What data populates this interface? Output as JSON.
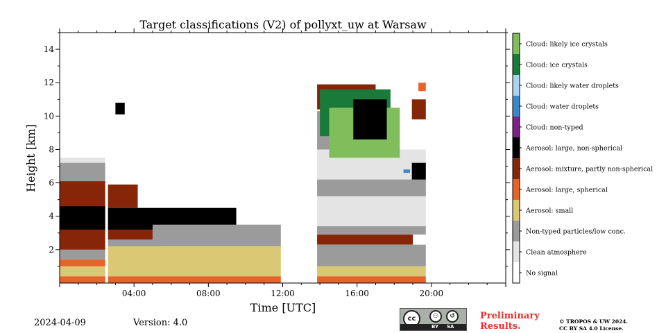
{
  "chart_data": {
    "type": "heatmap",
    "title": "Target classifications (V2) of pollyxt_uw at Warsaw",
    "xlabel": "Time [UTC]",
    "ylabel": "Height [km]",
    "xlim_hours": [
      0,
      24
    ],
    "ylim_km": [
      0,
      15
    ],
    "x_ticks": [
      {
        "hour": 4,
        "label": "04:00"
      },
      {
        "hour": 8,
        "label": "08:00"
      },
      {
        "hour": 12,
        "label": "12:00"
      },
      {
        "hour": 16,
        "label": "16:00"
      },
      {
        "hour": 20,
        "label": "20:00"
      }
    ],
    "y_ticks": [
      {
        "km": 2,
        "label": "2"
      },
      {
        "km": 4,
        "label": "4"
      },
      {
        "km": 6,
        "label": "6"
      },
      {
        "km": 8,
        "label": "8"
      },
      {
        "km": 10,
        "label": "10"
      },
      {
        "km": 12,
        "label": "12"
      },
      {
        "km": 14,
        "label": "14"
      }
    ],
    "classes": [
      {
        "id": 11,
        "label": "Cloud: likely ice crystals",
        "color": "#7fbe5a"
      },
      {
        "id": 10,
        "label": "Cloud: ice crystals",
        "color": "#1a7a3a"
      },
      {
        "id": 9,
        "label": "Cloud: likely water droplets",
        "color": "#a8d4f2"
      },
      {
        "id": 8,
        "label": "Cloud: water droplets",
        "color": "#3a88c8"
      },
      {
        "id": 7,
        "label": "Cloud: non-typed",
        "color": "#7d2185"
      },
      {
        "id": 6,
        "label": "Aerosol: large, non-spherical",
        "color": "#000000"
      },
      {
        "id": 5,
        "label": "Aerosol: mixture, partly non-spherical",
        "color": "#862508"
      },
      {
        "id": 4,
        "label": "Aerosol: large, spherical",
        "color": "#e8632a"
      },
      {
        "id": 3,
        "label": "Aerosol: small",
        "color": "#dbc874"
      },
      {
        "id": 2,
        "label": "Non-typed particles/low conc.",
        "color": "#9b9b9b"
      },
      {
        "id": 1,
        "label": "Clean atmosphere",
        "color": "#e4e4e4"
      },
      {
        "id": 0,
        "label": "No signal",
        "color": "#ffffff"
      }
    ],
    "regions": [
      {
        "class": 1,
        "t0": 0,
        "t1": 2.45,
        "h0": 0,
        "h1": 7.5
      },
      {
        "class": 2,
        "t0": 0,
        "t1": 2.45,
        "h0": 6.0,
        "h1": 7.2
      },
      {
        "class": 5,
        "t0": 0,
        "t1": 2.45,
        "h0": 4.5,
        "h1": 6.1
      },
      {
        "class": 6,
        "t0": 0,
        "t1": 2.45,
        "h0": 3.2,
        "h1": 4.6
      },
      {
        "class": 5,
        "t0": 0,
        "t1": 2.45,
        "h0": 2.0,
        "h1": 3.2
      },
      {
        "class": 2,
        "t0": 0,
        "t1": 2.45,
        "h0": 1.4,
        "h1": 2.0
      },
      {
        "class": 4,
        "t0": 0,
        "t1": 2.45,
        "h0": 1.0,
        "h1": 1.4
      },
      {
        "class": 3,
        "t0": 0,
        "t1": 2.45,
        "h0": 0.4,
        "h1": 1.0
      },
      {
        "class": 4,
        "t0": 0,
        "t1": 2.45,
        "h0": 0.0,
        "h1": 0.4
      },
      {
        "class": 5,
        "t0": 2.6,
        "t1": 4.2,
        "h0": 4.5,
        "h1": 5.9
      },
      {
        "class": 6,
        "t0": 2.6,
        "t1": 9.5,
        "h0": 3.2,
        "h1": 4.5
      },
      {
        "class": 5,
        "t0": 2.6,
        "t1": 5.0,
        "h0": 2.6,
        "h1": 3.2
      },
      {
        "class": 2,
        "t0": 2.6,
        "t1": 5.5,
        "h0": 1.4,
        "h1": 2.6
      },
      {
        "class": 2,
        "t0": 5.0,
        "t1": 11.9,
        "h0": 2.2,
        "h1": 3.5
      },
      {
        "class": 3,
        "t0": 2.6,
        "t1": 11.9,
        "h0": 0.4,
        "h1": 2.2
      },
      {
        "class": 4,
        "t0": 2.6,
        "t1": 11.9,
        "h0": 0.0,
        "h1": 0.4
      },
      {
        "class": 6,
        "t0": 3.0,
        "t1": 3.5,
        "h0": 10.1,
        "h1": 10.8
      },
      {
        "class": 1,
        "t0": 13.85,
        "t1": 19.7,
        "h0": 3.0,
        "h1": 8.0
      },
      {
        "class": 2,
        "t0": 13.85,
        "t1": 19.7,
        "h0": 5.2,
        "h1": 6.2
      },
      {
        "class": 2,
        "t0": 13.85,
        "t1": 19.7,
        "h0": 2.9,
        "h1": 3.4
      },
      {
        "class": 5,
        "t0": 13.85,
        "t1": 19.0,
        "h0": 2.3,
        "h1": 2.9
      },
      {
        "class": 2,
        "t0": 13.85,
        "t1": 19.7,
        "h0": 1.0,
        "h1": 2.3
      },
      {
        "class": 3,
        "t0": 13.85,
        "t1": 19.7,
        "h0": 0.4,
        "h1": 1.0
      },
      {
        "class": 4,
        "t0": 13.85,
        "t1": 19.7,
        "h0": 0.0,
        "h1": 0.4
      },
      {
        "class": 2,
        "t0": 13.85,
        "t1": 18.2,
        "h0": 8.0,
        "h1": 10.3
      },
      {
        "class": 5,
        "t0": 13.85,
        "t1": 17.0,
        "h0": 10.4,
        "h1": 11.9
      },
      {
        "class": 10,
        "t0": 14.0,
        "t1": 17.8,
        "h0": 8.8,
        "h1": 11.6
      },
      {
        "class": 11,
        "t0": 14.5,
        "t1": 18.3,
        "h0": 7.5,
        "h1": 10.5
      },
      {
        "class": 6,
        "t0": 15.8,
        "t1": 17.6,
        "h0": 8.6,
        "h1": 11.0
      },
      {
        "class": 6,
        "t0": 18.95,
        "t1": 19.7,
        "h0": 6.2,
        "h1": 7.2
      },
      {
        "class": 5,
        "t0": 18.95,
        "t1": 19.7,
        "h0": 9.8,
        "h1": 11.0
      },
      {
        "class": 4,
        "t0": 19.3,
        "t1": 19.7,
        "h0": 11.5,
        "h1": 12.0
      },
      {
        "class": 8,
        "t0": 18.5,
        "t1": 18.85,
        "h0": 6.6,
        "h1": 6.8
      }
    ]
  },
  "footer": {
    "date": "2024-04-09",
    "version": "Version: 4.0",
    "preliminary": [
      "Preliminary",
      "Results."
    ],
    "copyright": [
      "© TROPOS & UW 2024.",
      "CC BY SA 4.0 License."
    ],
    "license_logo": {
      "cc": "cc",
      "by": "BY",
      "sa": "SA"
    }
  }
}
